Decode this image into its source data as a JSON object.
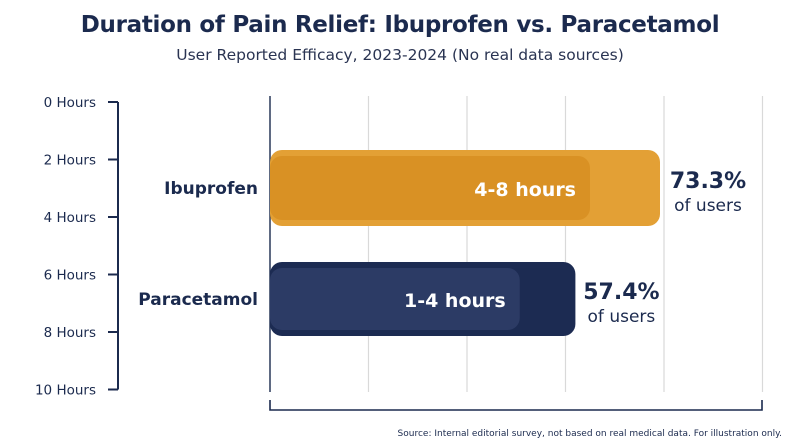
{
  "chart_data": {
    "type": "bar",
    "orientation": "horizontal",
    "title": "Duration of Pain Relief: Ibuprofen vs. Paracetamol",
    "subtitle": "User Reported Efficacy, 2023-2024 (No real data sources)",
    "source": "Source: Internal editorial survey, not based on real medical data. For illustration only.",
    "y_axis": {
      "ticks": [
        "0 Hours",
        "2 Hours",
        "4 Hours",
        "6 Hours",
        "8 Hours",
        "10 Hours"
      ]
    },
    "grid": true,
    "categories": [
      "Ibuprofen",
      "Paracetamol"
    ],
    "series": [
      {
        "values": [
          73.3,
          57.4
        ],
        "bar_labels": [
          "4-8 hours",
          "1-4 hours"
        ],
        "value_labels": [
          "73.3%",
          "57.4%"
        ],
        "value_sublabels": [
          "of users",
          "of users"
        ]
      }
    ],
    "colors": {
      "Ibuprofen": "#e3a035",
      "Ibuprofen_inner": "#d99124",
      "Paracetamol": "#1c2b52",
      "Paracetamol_inner": "#2c3b65",
      "text_dark": "#1b2a4e",
      "grid": "#d9d9d9"
    }
  }
}
